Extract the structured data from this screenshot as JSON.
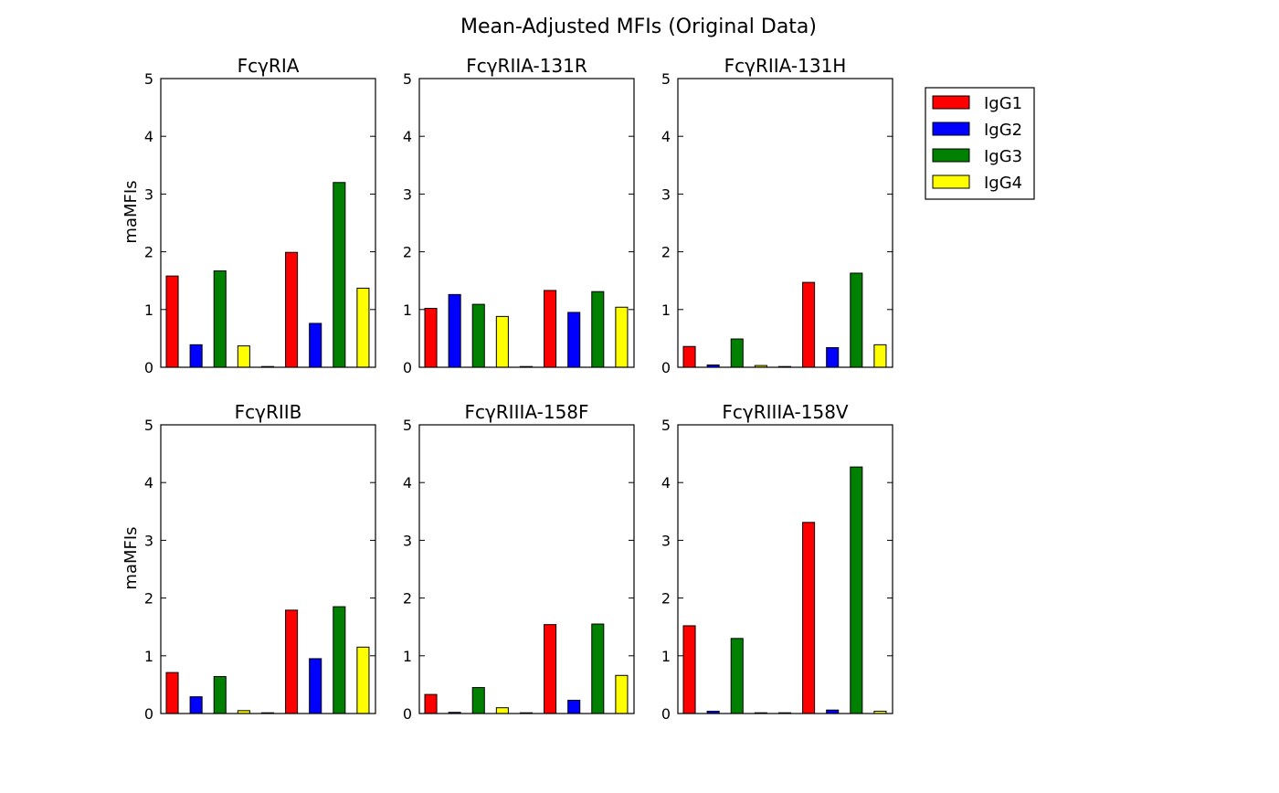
{
  "figure": {
    "title": "Mean-Adjusted MFIs (Original Data)"
  },
  "colors": {
    "IgG1": "#ff0000",
    "IgG2": "#0000ff",
    "IgG3": "#008000",
    "IgG4": "#ffff00",
    "axis": "#000000"
  },
  "legend": {
    "placement": "upper-right-outside",
    "entries": [
      {
        "label": "IgG1",
        "color": "#ff0000"
      },
      {
        "label": "IgG2",
        "color": "#0000ff"
      },
      {
        "label": "IgG3",
        "color": "#008000"
      },
      {
        "label": "IgG4",
        "color": "#ffff00"
      }
    ]
  },
  "chart_data": [
    {
      "type": "bar",
      "title": "FcγRIA",
      "ylabel": "maMFIs",
      "ylim": [
        0,
        5
      ],
      "yticks": [
        "0",
        "1",
        "2",
        "3",
        "4",
        "5"
      ],
      "grid": false,
      "values": [
        1.58,
        0.39,
        1.67,
        0.37,
        0.01,
        1.99,
        0.76,
        3.2,
        1.37
      ],
      "colors": [
        "IgG1",
        "IgG2",
        "IgG3",
        "IgG4",
        "IgG4",
        "IgG1",
        "IgG2",
        "IgG3",
        "IgG4"
      ]
    },
    {
      "type": "bar",
      "title": "FcγRIIA-131R",
      "ylabel": "",
      "ylim": [
        0,
        5
      ],
      "yticks": [
        "0",
        "1",
        "2",
        "3",
        "4",
        "5"
      ],
      "grid": false,
      "values": [
        1.02,
        1.26,
        1.09,
        0.88,
        0.01,
        1.33,
        0.95,
        1.31,
        1.04
      ],
      "colors": [
        "IgG1",
        "IgG2",
        "IgG3",
        "IgG4",
        "IgG4",
        "IgG1",
        "IgG2",
        "IgG3",
        "IgG4"
      ]
    },
    {
      "type": "bar",
      "title": "FcγRIIA-131H",
      "ylabel": "",
      "ylim": [
        0,
        5
      ],
      "yticks": [
        "0",
        "1",
        "2",
        "3",
        "4",
        "5"
      ],
      "grid": false,
      "values": [
        0.36,
        0.04,
        0.49,
        0.03,
        0.01,
        1.47,
        0.34,
        1.63,
        0.39
      ],
      "colors": [
        "IgG1",
        "IgG2",
        "IgG3",
        "IgG4",
        "IgG4",
        "IgG1",
        "IgG2",
        "IgG3",
        "IgG4"
      ]
    },
    {
      "type": "bar",
      "title": "FcγRIIB",
      "ylabel": "maMFIs",
      "ylim": [
        0,
        5
      ],
      "yticks": [
        "0",
        "1",
        "2",
        "3",
        "4",
        "5"
      ],
      "grid": false,
      "values": [
        0.71,
        0.29,
        0.64,
        0.05,
        0.01,
        1.79,
        0.95,
        1.85,
        1.15
      ],
      "colors": [
        "IgG1",
        "IgG2",
        "IgG3",
        "IgG4",
        "IgG4",
        "IgG1",
        "IgG2",
        "IgG3",
        "IgG4"
      ]
    },
    {
      "type": "bar",
      "title": "FcγRIIIA-158F",
      "ylabel": "",
      "ylim": [
        0,
        5
      ],
      "yticks": [
        "0",
        "1",
        "2",
        "3",
        "4",
        "5"
      ],
      "grid": false,
      "values": [
        0.33,
        0.02,
        0.45,
        0.1,
        0.01,
        1.54,
        0.23,
        1.55,
        0.66
      ],
      "colors": [
        "IgG1",
        "IgG2",
        "IgG3",
        "IgG4",
        "IgG4",
        "IgG1",
        "IgG2",
        "IgG3",
        "IgG4"
      ]
    },
    {
      "type": "bar",
      "title": "FcγRIIIA-158V",
      "ylabel": "",
      "ylim": [
        0,
        5
      ],
      "yticks": [
        "0",
        "1",
        "2",
        "3",
        "4",
        "5"
      ],
      "grid": false,
      "values": [
        1.52,
        0.04,
        1.3,
        0.01,
        0.01,
        3.31,
        0.06,
        4.27,
        0.04
      ],
      "colors": [
        "IgG1",
        "IgG2",
        "IgG3",
        "IgG4",
        "IgG4",
        "IgG1",
        "IgG2",
        "IgG3",
        "IgG4"
      ]
    }
  ]
}
